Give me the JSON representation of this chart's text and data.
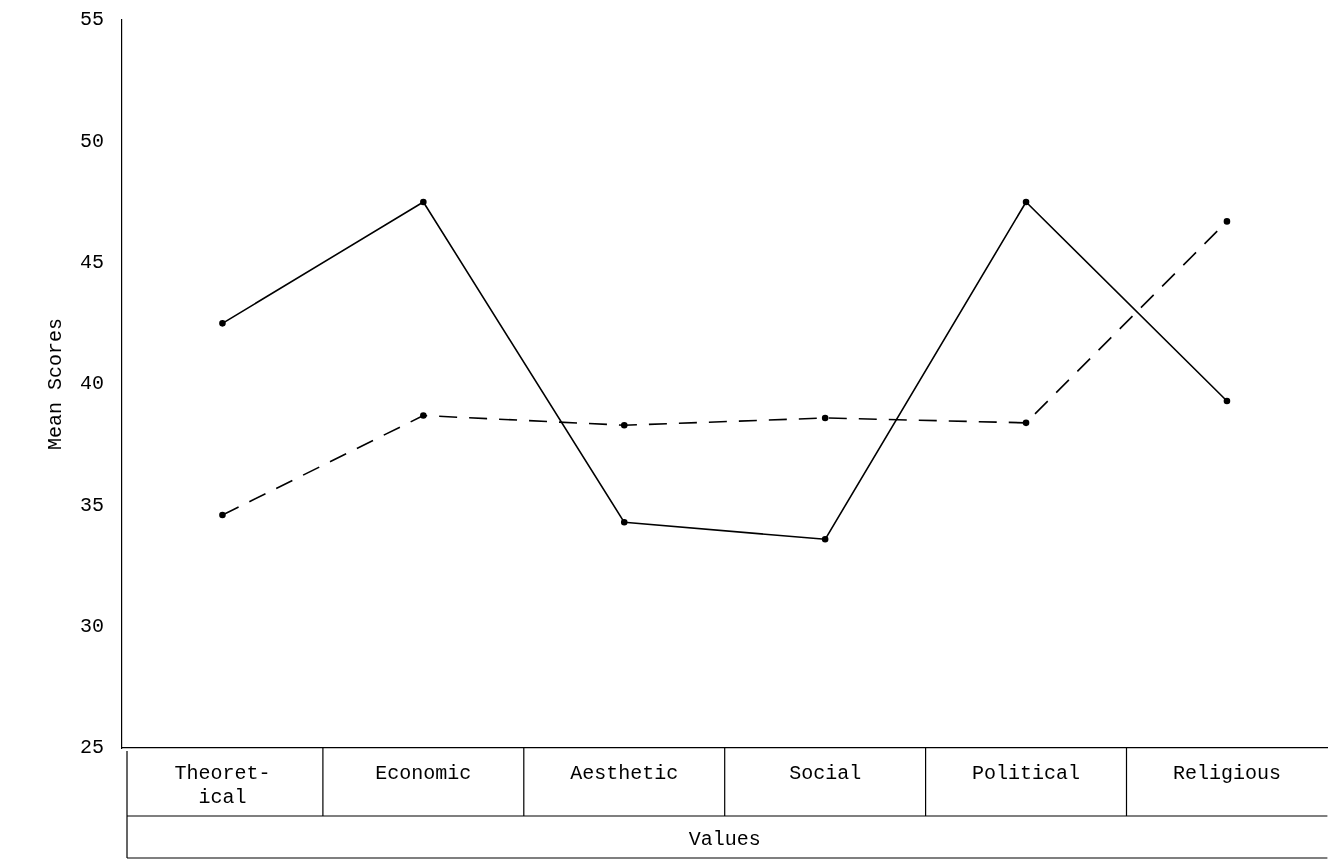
{
  "chart_data": {
    "type": "line",
    "ylabel": "Mean Scores",
    "xlabel": "Values",
    "categories": [
      "Theoret- ical",
      "Economic",
      "Aesthetic",
      "Social",
      "Political",
      "Religious"
    ],
    "series": [
      {
        "color": "#000000",
        "line_style": "solid",
        "values": [
          42.5,
          47.5,
          34.3,
          33.6,
          47.5,
          39.3
        ]
      },
      {
        "color": "#000000",
        "line_style": "dashed",
        "values": [
          34.6,
          38.7,
          38.3,
          38.6,
          38.4,
          46.7
        ]
      }
    ],
    "ylim": [
      25,
      55
    ],
    "yticks": [
      25,
      30,
      35,
      40,
      45,
      50,
      55
    ],
    "grid": false,
    "legend": false,
    "marker": "circle"
  }
}
